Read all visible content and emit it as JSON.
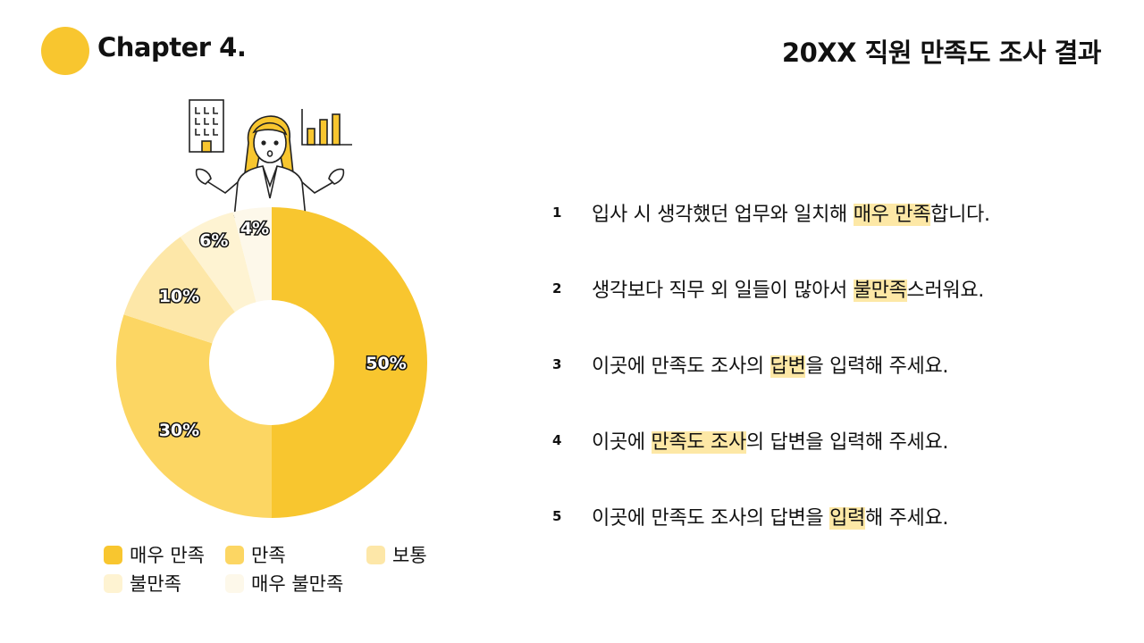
{
  "header": {
    "chapter": "Chapter 4.",
    "title": "20XX 직원 만족도 조사 결과"
  },
  "colors": {
    "accent": "#f8c62f",
    "highlight": "#fde8a6"
  },
  "chart_data": {
    "type": "pie",
    "donut": true,
    "categories": [
      "매우 만족",
      "만족",
      "보통",
      "불만족",
      "매우 불만족"
    ],
    "values": [
      50,
      30,
      10,
      6,
      4
    ],
    "labels": [
      "50%",
      "30%",
      "10%",
      "6%",
      "4%"
    ],
    "colors": [
      "#f8c62f",
      "#fcd663",
      "#fde7a8",
      "#fef3d2",
      "#fdf8ea"
    ],
    "legend": "bottom"
  },
  "legend": {
    "items": [
      {
        "label": "매우 만족"
      },
      {
        "label": "만족"
      },
      {
        "label": "보통"
      },
      {
        "label": "불만족"
      },
      {
        "label": "매우 불만족"
      }
    ]
  },
  "items": [
    {
      "num": "1",
      "before": "입사 시 생각했던 업무와 일치해 ",
      "highlight": "매우 만족",
      "after": "합니다."
    },
    {
      "num": "2",
      "before": "생각보다 직무 외 일들이 많아서 ",
      "highlight": "불만족",
      "after": "스러워요."
    },
    {
      "num": "3",
      "before": "이곳에 만족도 조사의 ",
      "highlight": "답변",
      "after": "을 입력해 주세요."
    },
    {
      "num": "4",
      "before": "이곳에 ",
      "highlight": "만족도 조사",
      "after": "의 답변을 입력해 주세요."
    },
    {
      "num": "5",
      "before": "이곳에 만족도 조사의 답변을 ",
      "highlight": "입력",
      "after": "해 주세요."
    }
  ]
}
